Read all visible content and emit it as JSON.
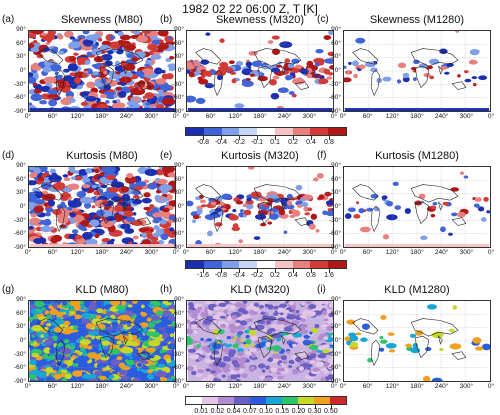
{
  "figure_title": "1982 02 22 06:00 Z, T [K]",
  "rows": [
    {
      "panels": [
        {
          "letter": "(a)",
          "title": "Skewness (M80)",
          "style": "dense-div"
        },
        {
          "letter": "(b)",
          "title": "Skewness (M320)",
          "style": "mid-div"
        },
        {
          "letter": "(c)",
          "title": "Skewness (M1280)",
          "style": "sparse-div"
        }
      ],
      "colorbar": {
        "labels": [
          "-0.8",
          "-0.4",
          "-0.2",
          "-0.1",
          "0.1",
          "0.2",
          "0.4",
          "0.8"
        ],
        "colors": [
          "#1a2fb0",
          "#3f63d8",
          "#7f9fe8",
          "#c6d4f5",
          "#ffffff",
          "#f6c4c4",
          "#e8807e",
          "#d43a35",
          "#b01818"
        ]
      }
    },
    {
      "panels": [
        {
          "letter": "(d)",
          "title": "Kurtosis (M80)",
          "style": "dense-div"
        },
        {
          "letter": "(e)",
          "title": "Kurtosis (M320)",
          "style": "mid-div"
        },
        {
          "letter": "(f)",
          "title": "Kurtosis (M1280)",
          "style": "sparse-div"
        }
      ],
      "colorbar": {
        "labels": [
          "-1.6",
          "-0.8",
          "-0.4",
          "-0.2",
          "0.2",
          "0.4",
          "0.8",
          "1.6"
        ],
        "colors": [
          "#1a2fb0",
          "#3f63d8",
          "#7f9fe8",
          "#c6d4f5",
          "#ffffff",
          "#f6c4c4",
          "#e8807e",
          "#d43a35",
          "#b01818"
        ]
      }
    },
    {
      "panels": [
        {
          "letter": "(g)",
          "title": "KLD (M80)",
          "style": "kld-dense"
        },
        {
          "letter": "(h)",
          "title": "KLD (M320)",
          "style": "kld-mid"
        },
        {
          "letter": "(i)",
          "title": "KLD (M1280)",
          "style": "kld-sparse"
        }
      ],
      "colorbar": {
        "labels": [
          "0.01",
          "0.02",
          "0.04",
          "0.07",
          "0.10",
          "0.15",
          "0.20",
          "0.30",
          "0.50"
        ],
        "colors": [
          "#ffffff",
          "#e3c6e8",
          "#b48ad0",
          "#6a5fc4",
          "#2b5be0",
          "#19a6d6",
          "#2ec46a",
          "#c8d828",
          "#f0a020",
          "#d02828"
        ]
      }
    }
  ],
  "y_tick_labels": [
    "90°",
    "60°",
    "30°",
    "0°",
    "-30°",
    "-60°",
    "-90°"
  ],
  "x_tick_labels": [
    "0°",
    "60°",
    "120°",
    "180°",
    "240°",
    "300°",
    "0°"
  ]
}
